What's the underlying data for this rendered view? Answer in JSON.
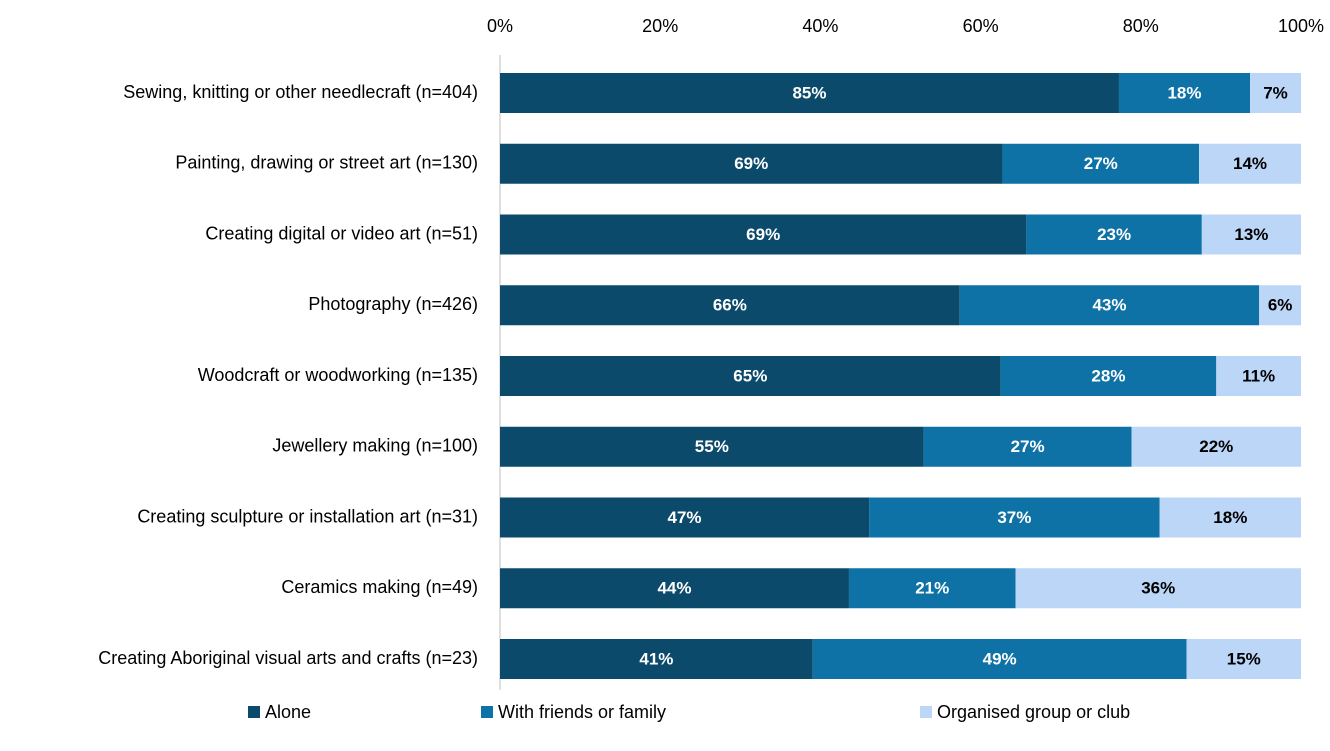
{
  "chart_data": {
    "type": "bar",
    "orientation": "horizontal",
    "stacking": "percent",
    "categories": [
      "Sewing, knitting or other needlecraft (n=404)",
      "Painting, drawing or street art (n=130)",
      "Creating digital or video art (n=51)",
      "Photography (n=426)",
      "Woodcraft or woodworking (n=135)",
      "Jewellery making (n=100)",
      "Creating sculpture or installation art (n=31)",
      "Ceramics making (n=49)",
      "Creating Aboriginal visual arts and crafts (n=23)"
    ],
    "series": [
      {
        "name": "Alone",
        "color": "#0c4a6b",
        "label_color": "#ffffff",
        "values": [
          85,
          69,
          69,
          66,
          65,
          55,
          47,
          44,
          41
        ],
        "value_labels": [
          "85%",
          "69%",
          "69%",
          "66%",
          "65%",
          "55%",
          "47%",
          "44%",
          "41%"
        ]
      },
      {
        "name": "With friends or family",
        "color": "#0e72a6",
        "label_color": "#ffffff",
        "values": [
          18,
          27,
          23,
          43,
          28,
          27,
          37,
          21,
          49
        ],
        "value_labels": [
          "18%",
          "27%",
          "23%",
          "43%",
          "28%",
          "27%",
          "37%",
          "21%",
          "49%"
        ]
      },
      {
        "name": "Organised group or club",
        "color": "#bcd6f7",
        "label_color": "#000000",
        "values": [
          7,
          14,
          13,
          6,
          11,
          22,
          18,
          36,
          15
        ],
        "value_labels": [
          "7%",
          "14%",
          "13%",
          "6%",
          "11%",
          "22%",
          "18%",
          "36%",
          "15%"
        ]
      }
    ],
    "xlim": [
      0,
      100
    ],
    "xticks": [
      {
        "value": 0,
        "label": "0%"
      },
      {
        "value": 20,
        "label": "20%"
      },
      {
        "value": 40,
        "label": "40%"
      },
      {
        "value": 60,
        "label": "60%"
      },
      {
        "value": 80,
        "label": "80%"
      },
      {
        "value": 100,
        "label": "100%"
      }
    ],
    "legend": "bottom"
  }
}
